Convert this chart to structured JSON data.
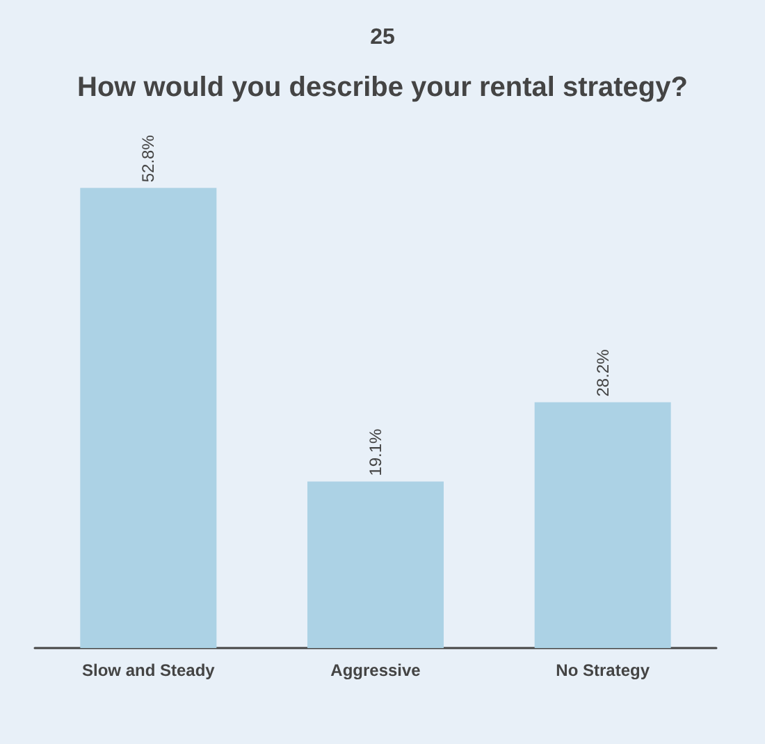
{
  "chart_data": {
    "type": "bar",
    "title": "25",
    "subtitle": "How would you describe your rental strategy?",
    "categories": [
      "Slow and Steady",
      "Aggressive",
      "No Strategy"
    ],
    "values": [
      52.8,
      19.1,
      28.2
    ],
    "color": "#acd2e5",
    "value_labels": [
      "52.8%",
      "19.1%",
      "28.2%"
    ]
  }
}
